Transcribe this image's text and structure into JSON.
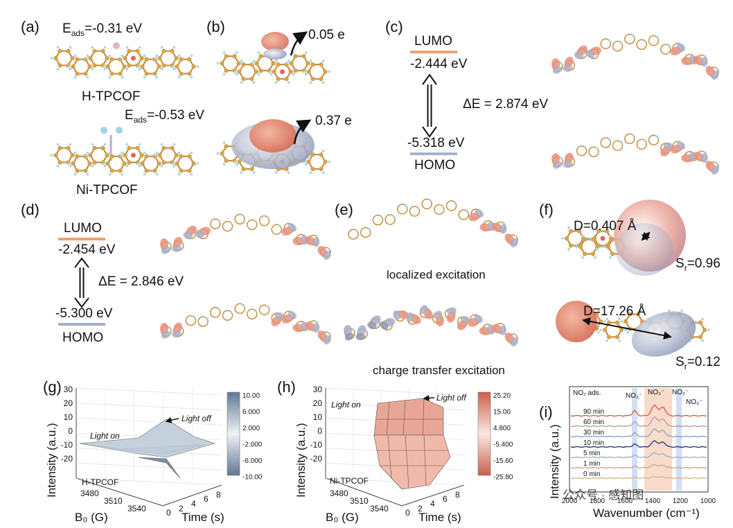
{
  "panels": {
    "a": {
      "label": "(a)",
      "eads1_prefix": "E",
      "eads1_sub": "ads",
      "eads1_value": "=-0.31 eV",
      "name1": "H-TPCOF",
      "eads2_prefix": "E",
      "eads2_sub": "ads",
      "eads2_value": "=-0.53 eV",
      "name2": "Ni-TPCOF"
    },
    "b": {
      "label": "(b)",
      "charge1": "0.05 e",
      "charge2": "0.37 e"
    },
    "c": {
      "label": "(c)",
      "lumo": "LUMO",
      "lumo_value": "-2.444 eV",
      "gap": "ΔE = 2.874 eV",
      "homo_value": "-5.318 eV",
      "homo": "HOMO"
    },
    "d": {
      "label": "(d)",
      "lumo": "LUMO",
      "lumo_value": "-2.454 eV",
      "gap": "ΔE = 2.846 eV",
      "homo_value": "-5.300 eV",
      "homo": "HOMO"
    },
    "e": {
      "label": "(e)",
      "caption1": "localized excitation",
      "caption2": "charge transfer excitation"
    },
    "f": {
      "label": "(f)",
      "d1": "D=0.407 Å",
      "sr1_prefix": "S",
      "sr1_sub": "r",
      "sr1_value": "=0.96",
      "d2": "D=17.26 Å",
      "sr2_prefix": "S",
      "sr2_sub": "r",
      "sr2_value": "=0.12"
    },
    "g": {
      "label": "(g)",
      "ylabel": "Intensity (a.u.)",
      "xlabel": "B₀ (G)",
      "tlabel": "Time (s)",
      "yticks": [
        "30",
        "20",
        "10",
        "0",
        "-10",
        "-20"
      ],
      "bticks": [
        "3480",
        "3510",
        "3540"
      ],
      "tticks": [
        "0",
        "2",
        "4",
        "6",
        "8"
      ],
      "light_on": "Light on",
      "light_off": "Light off",
      "sample": "H-TPCOF",
      "colorbar": [
        "10.00",
        "6.000",
        "2.000",
        "-2.000",
        "-6.000",
        "-10.00"
      ]
    },
    "h": {
      "label": "(h)",
      "ylabel": "Intensity (a.u.)",
      "xlabel": "B₀ (G)",
      "tlabel": "Time (s)",
      "yticks": [
        "30",
        "20",
        "10",
        "0",
        "-10",
        "-20"
      ],
      "bticks": [
        "3480",
        "3510",
        "3540"
      ],
      "tticks": [
        "0",
        "2",
        "4",
        "6",
        "8"
      ],
      "light_on": "Light on",
      "light_off": "Light off",
      "sample": "Ni-TPCOF",
      "colorbar": [
        "25.20",
        "15.00",
        "4.800",
        "-5.400",
        "-15.60",
        "-25.80"
      ]
    },
    "i": {
      "label": "(i)",
      "ylabel": "Intensity (a.u.)",
      "xlabel": "Wavenumber (cm⁻¹)",
      "legend_title": "NO₂ ads.",
      "series": [
        "90 min",
        "60 min",
        "30 min",
        "10 min",
        "5 min",
        "1 min",
        "0 min"
      ],
      "xticks": [
        "2000",
        "1800",
        "1600",
        "1400",
        "1200",
        "1000"
      ],
      "band_labels": [
        "NO₃⁻",
        "NO₂⁻",
        "NO₂⁻",
        "NO₃⁻"
      ]
    }
  },
  "watermark": "公众号 · 感知图",
  "colors": {
    "lumo": "#f2a06a",
    "homo": "#a6b2cc",
    "orange_lobe": "#e8917a",
    "gray_lobe": "#a8adc4",
    "atom_c": "#d9a24a",
    "atom_o": "#e06464",
    "atom_h": "#9fd6e8"
  }
}
